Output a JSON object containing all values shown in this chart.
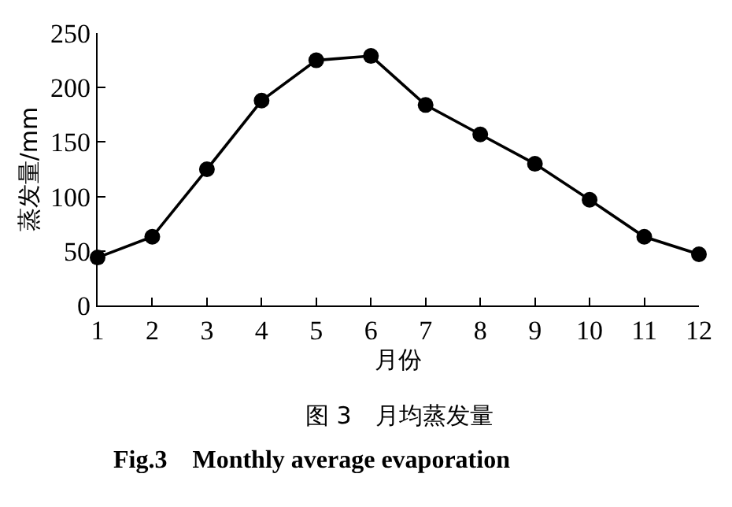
{
  "chart_data": {
    "type": "line",
    "title": "图 3　月均蒸发量",
    "subtitle": "Fig.3　Monthly average evaporation",
    "xlabel": "月份",
    "ylabel": "蒸发量/mm",
    "x": [
      1,
      2,
      3,
      4,
      5,
      6,
      7,
      8,
      9,
      10,
      11,
      12
    ],
    "series": [
      {
        "color": "#000000",
        "values": [
          44,
          63,
          125,
          188,
          225,
          229,
          184,
          157,
          130,
          97,
          63,
          47
        ]
      }
    ],
    "xlim": [
      1,
      12
    ],
    "xticks": [
      1,
      2,
      3,
      4,
      5,
      6,
      7,
      8,
      9,
      10,
      11,
      12
    ],
    "ylim": [
      0,
      250
    ],
    "yticks": [
      0,
      50,
      100,
      150,
      200,
      250
    ],
    "marker": "circle",
    "line_style": "solid"
  }
}
